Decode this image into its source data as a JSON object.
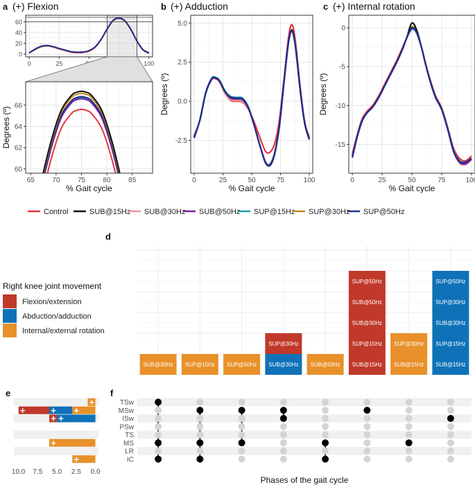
{
  "colors": {
    "Control": "#e8343f",
    "SUB@15Hz": "#111111",
    "SUB@30Hz": "#e8939f",
    "SUB@50Hz": "#7b1fa2",
    "SUP@15Hz": "#1aa0a8",
    "SUP@30Hz": "#c48a12",
    "SUP@50Hz": "#1f2f8f",
    "Flexion/extension": "#c0392b",
    "Abduction/adduction": "#0f72b8",
    "Internal/external rotation": "#e8912a",
    "grid": "#e5e5e5",
    "panel_shade": "#f0f0f0",
    "dot_active": "#000000",
    "dot_inactive": "#d4d4d4"
  },
  "chart_data": [
    {
      "id": "a",
      "type": "line",
      "panel_label": "a",
      "title": "(+) Flexion",
      "xlabel": "% Gait cycle",
      "ylabel": "Degrees (º)",
      "overview": {
        "xlim": [
          -3,
          103
        ],
        "ylim": [
          -5,
          72
        ],
        "xticks": [
          "0",
          "25",
          "50",
          "75",
          "100"
        ],
        "yticks": [
          "0",
          "20",
          "40",
          "60"
        ],
        "zoom_window_x": [
          65,
          90
        ],
        "x": [
          0,
          5,
          10,
          15,
          20,
          25,
          30,
          35,
          40,
          45,
          50,
          55,
          60,
          65,
          70,
          75,
          80,
          85,
          90,
          95,
          100
        ],
        "y": [
          2,
          9,
          14,
          15.5,
          13.5,
          10,
          7,
          4,
          3,
          3.5,
          6,
          13,
          27,
          46,
          62,
          66.5,
          61,
          45,
          24,
          8,
          2
        ]
      },
      "zoom": {
        "xlim": [
          64,
          89
        ],
        "ylim": [
          59.6,
          68.2
        ],
        "xticks": [
          "65",
          "70",
          "75",
          "80",
          "85"
        ],
        "yticks": [
          "60",
          "62",
          "64",
          "66"
        ],
        "x": [
          67,
          69,
          71,
          73,
          74,
          75,
          76,
          77,
          79,
          81,
          83
        ],
        "series": [
          {
            "name": "Control",
            "values": [
              57.0,
              60.9,
              63.8,
              65.2,
              65.5,
              65.6,
              65.5,
              65.2,
              63.8,
              60.9,
              57.0
            ]
          },
          {
            "name": "SUB@15Hz",
            "values": [
              58.7,
              62.6,
              65.5,
              66.9,
              67.2,
              67.3,
              67.2,
              66.9,
              65.5,
              62.6,
              58.7
            ]
          },
          {
            "name": "SUB@30Hz",
            "values": [
              58.2,
              62.1,
              65.0,
              66.4,
              66.7,
              66.8,
              66.7,
              66.4,
              65.0,
              62.1,
              58.2
            ]
          },
          {
            "name": "SUB@50Hz",
            "values": [
              58.0,
              61.9,
              64.8,
              66.2,
              66.5,
              66.6,
              66.5,
              66.2,
              64.8,
              61.9,
              58.0
            ]
          },
          {
            "name": "SUP@15Hz",
            "values": [
              58.1,
              62.0,
              64.9,
              66.3,
              66.6,
              66.7,
              66.6,
              66.3,
              64.9,
              62.0,
              58.1
            ]
          },
          {
            "name": "SUP@30Hz",
            "values": [
              58.5,
              62.4,
              65.3,
              66.7,
              67.0,
              67.1,
              67.0,
              66.7,
              65.3,
              62.4,
              58.5
            ]
          },
          {
            "name": "SUP@50Hz",
            "values": [
              58.2,
              62.1,
              65.0,
              66.4,
              66.7,
              66.8,
              66.7,
              66.4,
              65.0,
              62.1,
              58.2
            ]
          }
        ]
      }
    },
    {
      "id": "b",
      "type": "line",
      "panel_label": "b",
      "title": "(+) Adduction",
      "xlabel": "% Gait cycle",
      "ylabel": "Degrees (º)",
      "xlim": [
        -3,
        103
      ],
      "ylim": [
        -4.6,
        5.5
      ],
      "xticks": [
        "0",
        "25",
        "50",
        "75",
        "100"
      ],
      "yticks": [
        "-2.5",
        "0.0",
        "2.5",
        "5.0"
      ],
      "x": [
        0,
        5,
        10,
        15,
        18,
        22,
        27,
        32,
        37,
        42,
        47,
        52,
        57,
        62,
        66,
        70,
        74,
        78,
        82,
        85,
        88,
        92,
        96,
        100
      ],
      "y": [
        -2.3,
        -1.2,
        0.5,
        1.4,
        1.5,
        1.3,
        0.6,
        0.2,
        0.15,
        0.1,
        -0.4,
        -1.5,
        -2.8,
        -3.9,
        -4.0,
        -3.3,
        -1.6,
        1.2,
        3.8,
        4.5,
        3.5,
        0.8,
        -1.4,
        -2.4
      ],
      "series_offsets": [
        {
          "name": "Control",
          "values": [
            0.1,
            0.0,
            0.0,
            -0.05,
            -0.05,
            -0.05,
            -0.1,
            -0.15,
            -0.15,
            -0.15,
            -0.1,
            0.2,
            0.5,
            0.7,
            0.75,
            0.6,
            0.4,
            0.2,
            0.3,
            0.4,
            0.3,
            0.2,
            0.1,
            0.1
          ]
        },
        {
          "name": "SUB@15Hz",
          "values": [
            0,
            0,
            0,
            0,
            0,
            0,
            0,
            0,
            0,
            0,
            0,
            0,
            0,
            0,
            -0.1,
            -0.05,
            0,
            0,
            0,
            0.05,
            0,
            0,
            0,
            0
          ]
        },
        {
          "name": "SUB@30Hz",
          "values": [
            0,
            0,
            0,
            0,
            0,
            0,
            -0.05,
            -0.1,
            -0.1,
            -0.1,
            -0.05,
            0,
            0,
            0,
            -0.05,
            0,
            0,
            0,
            0,
            -0.05,
            0,
            0,
            0,
            0
          ]
        },
        {
          "name": "SUB@50Hz",
          "values": [
            0,
            0,
            0,
            0,
            0,
            0,
            0,
            0,
            0,
            0,
            0,
            0,
            0,
            0,
            -0.05,
            0,
            0,
            0,
            0,
            0,
            0,
            0,
            0,
            0
          ]
        },
        {
          "name": "SUP@15Hz",
          "values": [
            0,
            0,
            0.05,
            0.05,
            0.05,
            0.05,
            0.05,
            0.1,
            0.1,
            0.1,
            0.05,
            0,
            0,
            0,
            0,
            0,
            0,
            0,
            0,
            0,
            0,
            0,
            0,
            0
          ]
        },
        {
          "name": "SUP@30Hz",
          "values": [
            0,
            0,
            0,
            0,
            0,
            0,
            0,
            0,
            0,
            0,
            0,
            0,
            0,
            0,
            0,
            0,
            0,
            0,
            0,
            0,
            0,
            0,
            0,
            0
          ]
        },
        {
          "name": "SUP@50Hz",
          "values": [
            -0.05,
            0,
            0,
            0,
            0,
            0,
            0,
            0.05,
            0.05,
            0.05,
            0,
            0,
            0,
            -0.05,
            -0.05,
            0,
            0,
            0,
            0,
            0,
            0,
            0,
            0,
            -0.05
          ]
        }
      ]
    },
    {
      "id": "c",
      "type": "line",
      "panel_label": "c",
      "title": "(+) Internal rotation",
      "xlabel": "% Gait cycle",
      "ylabel": "Degrees (º)",
      "xlim": [
        -3,
        103
      ],
      "ylim": [
        -18.7,
        1.6
      ],
      "xticks": [
        "0",
        "25",
        "50",
        "75",
        "100"
      ],
      "yticks": [
        "-15",
        "-10",
        "-5",
        "0"
      ],
      "x": [
        0,
        4,
        8,
        12,
        17,
        22,
        27,
        32,
        37,
        42,
        46,
        50,
        54,
        58,
        62,
        66,
        70,
        75,
        80,
        85,
        90,
        95,
        100
      ],
      "y": [
        -16.5,
        -14,
        -12,
        -11,
        -10.2,
        -9,
        -7.5,
        -6,
        -4.5,
        -2.8,
        -1.2,
        0.2,
        -0.5,
        -2.5,
        -5,
        -7.2,
        -9,
        -10.5,
        -13,
        -15.8,
        -17.1,
        -17.3,
        -16.8
      ],
      "series_offsets": [
        {
          "name": "Control",
          "values": [
            0.3,
            0.2,
            0.2,
            0.2,
            0.2,
            0.2,
            0.2,
            0.2,
            0.2,
            0.2,
            0,
            -0.3,
            -0.2,
            0,
            0.1,
            0.2,
            0.2,
            0.2,
            0.2,
            0.3,
            0.3,
            0.2,
            0.3
          ]
        },
        {
          "name": "SUB@15Hz",
          "values": [
            0,
            0,
            0,
            0,
            0,
            0,
            0,
            0,
            0,
            0,
            0.1,
            0.4,
            0.2,
            0,
            0,
            0,
            0,
            0,
            0,
            0,
            0,
            0,
            0
          ]
        },
        {
          "name": "SUB@30Hz",
          "values": [
            -0.1,
            0,
            0,
            0,
            0,
            0,
            0,
            0,
            0,
            0,
            0,
            -0.2,
            -0.1,
            0,
            0,
            0,
            0,
            0,
            0,
            -0.1,
            -0.3,
            -0.3,
            -0.2
          ]
        },
        {
          "name": "SUB@50Hz",
          "values": [
            0,
            0,
            0,
            0,
            0,
            0,
            0,
            0,
            0,
            0,
            0,
            -0.3,
            -0.1,
            0,
            0,
            0,
            0,
            0,
            0,
            -0.1,
            -0.2,
            -0.2,
            -0.1
          ]
        },
        {
          "name": "SUP@15Hz",
          "values": [
            0,
            0,
            0,
            0,
            0,
            0,
            0,
            0,
            0,
            0,
            0,
            -0.4,
            -0.2,
            0,
            0,
            0,
            0,
            0,
            0,
            0,
            0,
            0,
            0
          ]
        },
        {
          "name": "SUP@30Hz",
          "values": [
            0,
            0,
            0,
            0,
            0,
            0,
            0,
            0,
            0,
            0,
            0,
            -0.1,
            0,
            0,
            0,
            0,
            0,
            0,
            0,
            0,
            0,
            0,
            0
          ]
        },
        {
          "name": "SUP@50Hz",
          "values": [
            -0.2,
            -0.1,
            -0.1,
            0,
            0,
            0,
            0,
            0,
            0,
            0,
            0,
            -0.2,
            -0.1,
            0,
            0,
            0,
            0,
            0,
            0,
            -0.1,
            -0.1,
            0,
            0
          ]
        }
      ]
    },
    {
      "id": "d",
      "type": "bar",
      "panel_label": "d",
      "stacked": true,
      "ylim": [
        0,
        6.2
      ],
      "columns": [
        {
          "segments": [
            {
              "movement": "Internal/external rotation",
              "labels": [
                "SUB@30Hz"
              ]
            }
          ]
        },
        {
          "segments": [
            {
              "movement": "Internal/external rotation",
              "labels": [
                "SUP@15Hz"
              ]
            }
          ]
        },
        {
          "segments": [
            {
              "movement": "Internal/external rotation",
              "labels": [
                "SUP@50Hz"
              ]
            }
          ]
        },
        {
          "segments": [
            {
              "movement": "Abduction/adduction",
              "labels": [
                "SUB@30Hz"
              ]
            },
            {
              "movement": "Flexion/extension",
              "labels": [
                "SUP@30Hz"
              ]
            }
          ]
        },
        {
          "segments": [
            {
              "movement": "Internal/external rotation",
              "labels": [
                "SUB@50Hz"
              ]
            }
          ]
        },
        {
          "segments": [
            {
              "movement": "Flexion/extension",
              "labels": [
                "SUB@15Hz",
                "SUP@15Hz",
                "SUB@30Hz",
                "SUB@50Hz",
                "SUP@50Hz"
              ]
            }
          ]
        },
        {
          "segments": [
            {
              "movement": "Internal/external rotation",
              "labels": [
                "SUB@15Hz",
                "SUP@30Hz"
              ]
            }
          ]
        },
        {
          "segments": [
            {
              "movement": "Abduction/adduction",
              "labels": [
                "SUB@15Hz",
                "SUP@15Hz",
                "SUB@30Hz",
                "SUP@30Hz",
                "SUP@50Hz"
              ]
            }
          ]
        }
      ]
    },
    {
      "id": "e",
      "type": "bar",
      "panel_label": "e",
      "orientation": "horizontal-reversed",
      "xlim": [
        10.6,
        -0.4
      ],
      "xticks": [
        "10.0",
        "7.5",
        "5.0",
        "2.5",
        "0.0"
      ],
      "rows": [
        "TSw",
        "MSw",
        "ISw",
        "PSw",
        "TS",
        "MS",
        "LR",
        "IC"
      ],
      "stacks": [
        {
          "row": "TSw",
          "segments": [
            {
              "movement": "Internal/external rotation",
              "value": 1
            }
          ]
        },
        {
          "row": "MSw",
          "segments": [
            {
              "movement": "Internal/external rotation",
              "value": 3
            },
            {
              "movement": "Abduction/adduction",
              "value": 3
            },
            {
              "movement": "Flexion/extension",
              "value": 4
            }
          ]
        },
        {
          "row": "ISw",
          "segments": [
            {
              "movement": "Abduction/adduction",
              "value": 5
            },
            {
              "movement": "Flexion/extension",
              "value": 1
            }
          ]
        },
        {
          "row": "PSw",
          "segments": []
        },
        {
          "row": "TS",
          "segments": []
        },
        {
          "row": "MS",
          "segments": [
            {
              "movement": "Internal/external rotation",
              "value": 6
            }
          ]
        },
        {
          "row": "LR",
          "segments": []
        },
        {
          "row": "IC",
          "segments": [
            {
              "movement": "Internal/external rotation",
              "value": 3
            }
          ]
        }
      ]
    },
    {
      "id": "f",
      "type": "scatter",
      "panel_label": "f",
      "xlabel": "Phases of the gait cycle",
      "rows": [
        "TSw",
        "MSw",
        "ISw",
        "PSw",
        "TS",
        "MS",
        "LR",
        "IC"
      ],
      "column_count": 8,
      "active": [
        [
          "TSw",
          "MS",
          "IC"
        ],
        [
          "MSw",
          "MS",
          "IC"
        ],
        [
          "MSw",
          "MS"
        ],
        [
          "MSw",
          "ISw"
        ],
        [
          "MS",
          "IC"
        ],
        [
          "MSw"
        ],
        [
          "MS"
        ],
        [
          "ISw"
        ]
      ]
    }
  ],
  "legend_lines": [
    "Control",
    "SUB@15Hz",
    "SUB@30Hz",
    "SUB@50Hz",
    "SUP@15Hz",
    "SUP@30Hz",
    "SUP@50Hz"
  ],
  "legend_movement": {
    "title": "Right knee joint movement",
    "items": [
      "Flexion/extension",
      "Abduction/adduction",
      "Internal/external rotation"
    ]
  },
  "plus_sign": "+"
}
